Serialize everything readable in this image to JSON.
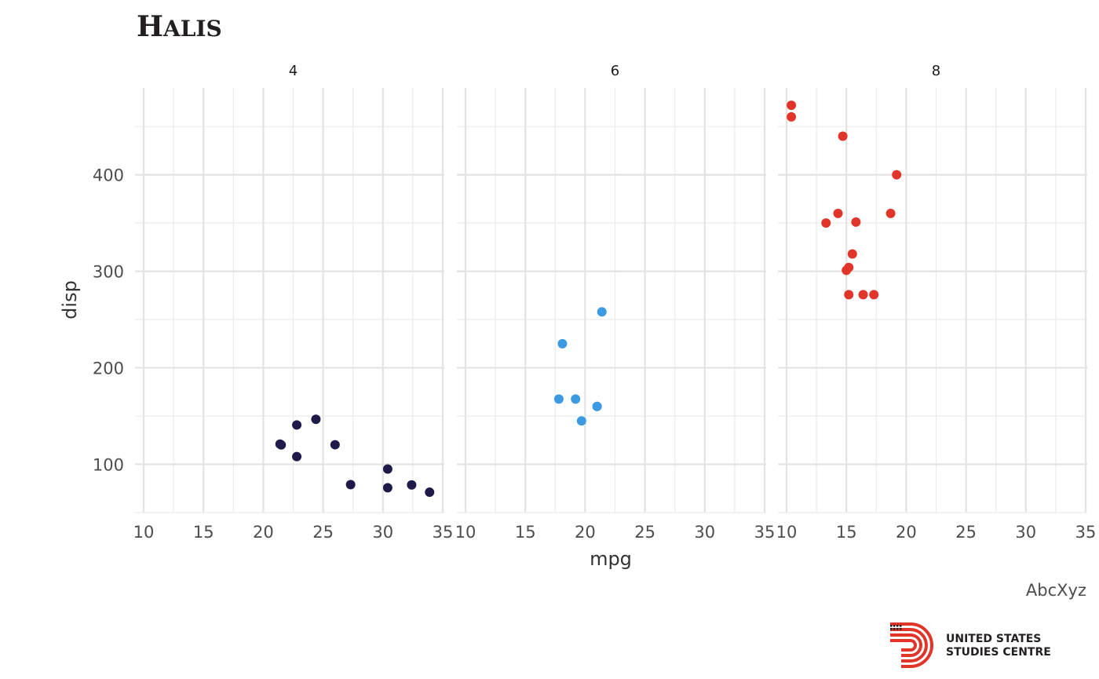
{
  "chart_data": {
    "type": "scatter",
    "title": "Halis",
    "xlabel": "mpg",
    "ylabel": "disp",
    "caption": "AbcXyz",
    "xlim": [
      10,
      35
    ],
    "ylim": [
      50,
      490
    ],
    "x_ticks": [
      10,
      15,
      20,
      25,
      30,
      35
    ],
    "y_ticks": [
      100,
      200,
      300,
      400
    ],
    "grid": true,
    "facets": [
      {
        "label": "4",
        "color": "#1e1a4a",
        "points": [
          {
            "x": 22.8,
            "y": 108
          },
          {
            "x": 24.4,
            "y": 146.7
          },
          {
            "x": 22.8,
            "y": 140.8
          },
          {
            "x": 32.4,
            "y": 78.7
          },
          {
            "x": 30.4,
            "y": 75.7
          },
          {
            "x": 33.9,
            "y": 71.1
          },
          {
            "x": 21.5,
            "y": 120.1
          },
          {
            "x": 27.3,
            "y": 79
          },
          {
            "x": 26.0,
            "y": 120.3
          },
          {
            "x": 30.4,
            "y": 95.1
          },
          {
            "x": 21.4,
            "y": 121
          }
        ]
      },
      {
        "label": "6",
        "color": "#3b9ae1",
        "points": [
          {
            "x": 21.0,
            "y": 160
          },
          {
            "x": 21.0,
            "y": 160
          },
          {
            "x": 21.4,
            "y": 258
          },
          {
            "x": 18.1,
            "y": 225
          },
          {
            "x": 19.2,
            "y": 167.6
          },
          {
            "x": 17.8,
            "y": 167.6
          },
          {
            "x": 19.7,
            "y": 145
          }
        ]
      },
      {
        "label": "8",
        "color": "#e2352a",
        "points": [
          {
            "x": 18.7,
            "y": 360
          },
          {
            "x": 14.3,
            "y": 360
          },
          {
            "x": 16.4,
            "y": 275.8
          },
          {
            "x": 17.3,
            "y": 275.8
          },
          {
            "x": 15.2,
            "y": 275.8
          },
          {
            "x": 10.4,
            "y": 472
          },
          {
            "x": 10.4,
            "y": 460
          },
          {
            "x": 14.7,
            "y": 440
          },
          {
            "x": 15.5,
            "y": 318
          },
          {
            "x": 15.2,
            "y": 304
          },
          {
            "x": 13.3,
            "y": 350
          },
          {
            "x": 19.2,
            "y": 400
          },
          {
            "x": 15.8,
            "y": 351
          },
          {
            "x": 15.0,
            "y": 301
          }
        ]
      }
    ]
  },
  "logo": {
    "line1": "UNITED STATES",
    "line2": "STUDIES CENTRE",
    "color_red": "#e2352a",
    "color_dark": "#231f20"
  }
}
